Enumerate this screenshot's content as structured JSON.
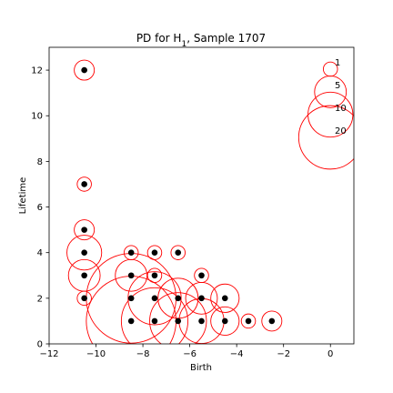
{
  "chart_data": {
    "type": "scatter",
    "title_prefix": "PD for H",
    "title_subscript": "1",
    "title_suffix": ", Sample 1707",
    "xlabel": "Birth",
    "ylabel": "Lifetime",
    "xlim": [
      -12,
      1
    ],
    "ylim": [
      0,
      13
    ],
    "xticks": [
      -12,
      -10,
      -8,
      -6,
      -4,
      -2,
      0
    ],
    "xtick_labels": [
      "−12",
      "−10",
      "−8",
      "−6",
      "−4",
      "−2",
      "0"
    ],
    "yticks": [
      0,
      2,
      4,
      6,
      8,
      10,
      12
    ],
    "ytick_labels": [
      "0",
      "2",
      "4",
      "6",
      "8",
      "10",
      "12"
    ],
    "grid": false,
    "point_color": "#000000",
    "ring_color": "#ff0000",
    "points": [
      {
        "birth": -10.5,
        "lifetime": 12,
        "multiplicity": 2
      },
      {
        "birth": -10.5,
        "lifetime": 7,
        "multiplicity": 1
      },
      {
        "birth": -10.5,
        "lifetime": 5,
        "multiplicity": 2
      },
      {
        "birth": -10.5,
        "lifetime": 4,
        "multiplicity": 6
      },
      {
        "birth": -10.5,
        "lifetime": 3,
        "multiplicity": 5
      },
      {
        "birth": -10.5,
        "lifetime": 2,
        "multiplicity": 1
      },
      {
        "birth": -8.5,
        "lifetime": 4,
        "multiplicity": 1
      },
      {
        "birth": -8.5,
        "lifetime": 3,
        "multiplicity": 5
      },
      {
        "birth": -8.5,
        "lifetime": 2,
        "multiplicity": 40
      },
      {
        "birth": -8.5,
        "lifetime": 1,
        "multiplicity": 40
      },
      {
        "birth": -7.5,
        "lifetime": 4,
        "multiplicity": 1
      },
      {
        "birth": -7.5,
        "lifetime": 3,
        "multiplicity": 1
      },
      {
        "birth": -7.5,
        "lifetime": 2,
        "multiplicity": 14
      },
      {
        "birth": -7.5,
        "lifetime": 1,
        "multiplicity": 22
      },
      {
        "birth": -6.5,
        "lifetime": 4,
        "multiplicity": 1
      },
      {
        "birth": -6.5,
        "lifetime": 2,
        "multiplicity": 8
      },
      {
        "birth": -6.5,
        "lifetime": 1,
        "multiplicity": 16
      },
      {
        "birth": -5.5,
        "lifetime": 3,
        "multiplicity": 1
      },
      {
        "birth": -5.5,
        "lifetime": 2,
        "multiplicity": 5
      },
      {
        "birth": -5.5,
        "lifetime": 1,
        "multiplicity": 10
      },
      {
        "birth": -4.5,
        "lifetime": 2,
        "multiplicity": 4
      },
      {
        "birth": -4.5,
        "lifetime": 1,
        "multiplicity": 4
      },
      {
        "birth": -3.5,
        "lifetime": 1,
        "multiplicity": 1
      },
      {
        "birth": -2.5,
        "lifetime": 1,
        "multiplicity": 2
      }
    ],
    "size_legend": [
      {
        "label": "1",
        "multiplicity": 1
      },
      {
        "label": "5",
        "multiplicity": 5
      },
      {
        "label": "10",
        "multiplicity": 10
      },
      {
        "label": "20",
        "multiplicity": 20
      }
    ]
  }
}
